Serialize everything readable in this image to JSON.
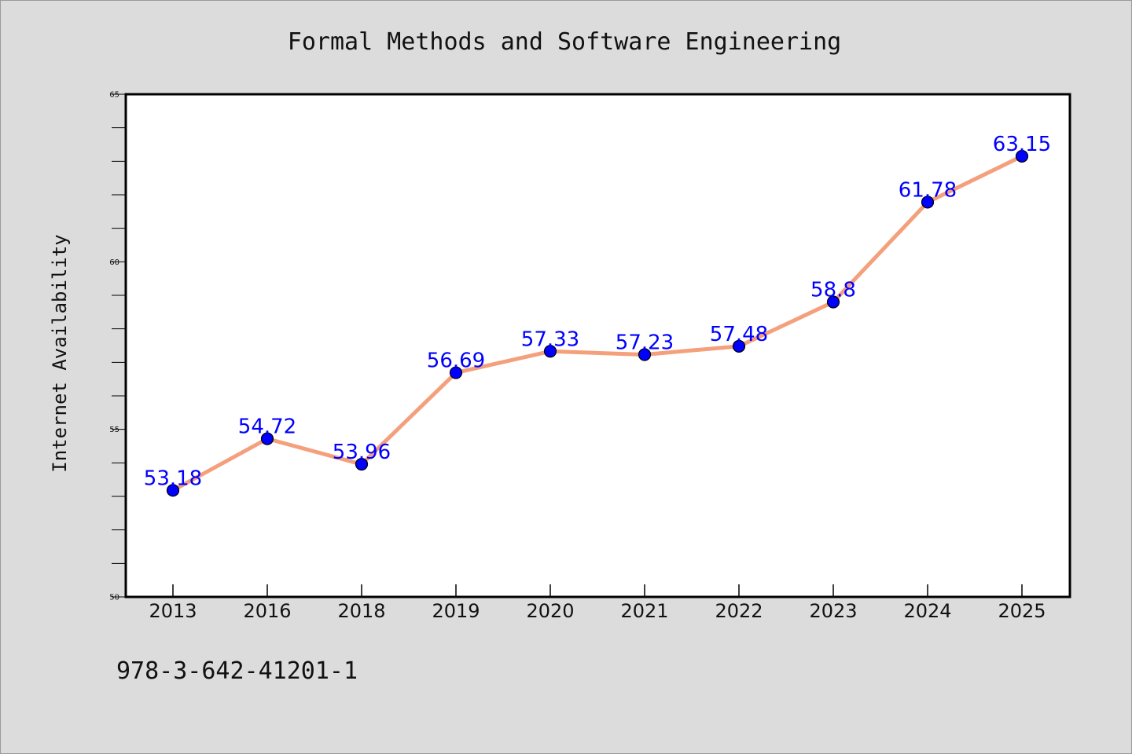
{
  "chart_data": {
    "type": "line",
    "title": "Formal Methods and Software Engineering",
    "xlabel": "",
    "ylabel": "Internet Availability",
    "categories": [
      "2013",
      "2016",
      "2018",
      "2019",
      "2020",
      "2021",
      "2022",
      "2023",
      "2024",
      "2025"
    ],
    "series": [
      {
        "values": [
          53.18,
          54.72,
          53.96,
          56.69,
          57.33,
          57.23,
          57.48,
          58.8,
          61.78,
          63.15
        ],
        "labels": [
          "53.18",
          "54.72",
          "53.96",
          "56.69",
          "57.33",
          "57.23",
          "57.48",
          "58.8",
          "61.78",
          "63.15"
        ]
      }
    ],
    "ylim": [
      50,
      65
    ],
    "yticks": [
      "50",
      "55",
      "60",
      "65"
    ],
    "yminor_step": 1,
    "grid": false,
    "legend": "none",
    "colors": {
      "line": "#f4a07c",
      "marker": "#0000ff",
      "marker_edge": "#000000",
      "data_label": "#0000ff",
      "axes_face": "#ffffff",
      "figure_face": "#dcdcdc"
    }
  },
  "footer": {
    "isbn": "978-3-642-41201-1"
  }
}
